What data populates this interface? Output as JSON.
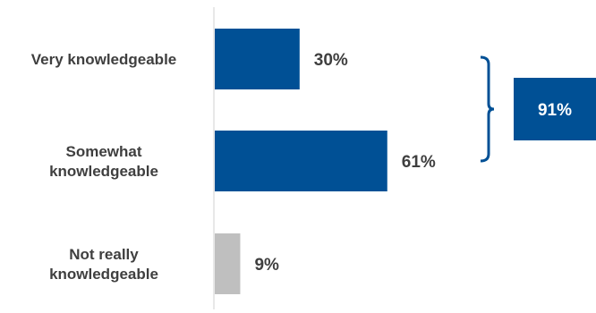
{
  "chart_data": {
    "type": "bar",
    "orientation": "horizontal",
    "categories": [
      [
        "Very knowledgeable"
      ],
      [
        "Somewhat",
        "knowledgeable"
      ],
      [
        "Not really",
        "knowledgeable"
      ]
    ],
    "values": [
      30,
      61,
      9
    ],
    "value_labels": [
      "30%",
      "61%",
      "9%"
    ],
    "bar_colors": [
      "#005095",
      "#005095",
      "#bfbfbf"
    ],
    "xlim": [
      0,
      100
    ],
    "grid": false,
    "legend": "none",
    "bracket": {
      "groups": [
        0,
        1
      ],
      "label": "91%",
      "color": "#005095",
      "label_text_color": "#ffffff"
    }
  }
}
